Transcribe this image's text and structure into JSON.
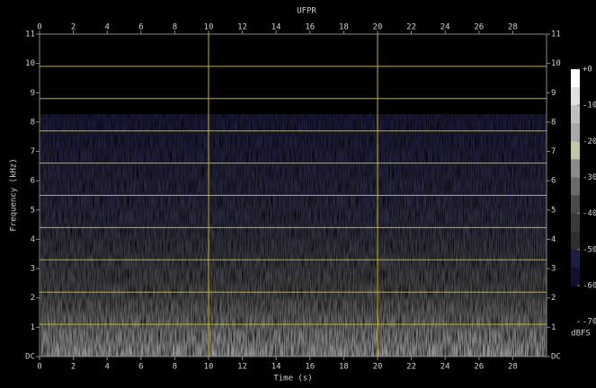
{
  "chart_data": {
    "type": "spectrogram",
    "title": "UFPR",
    "x_label": "Time (s)",
    "y_label": "Frequency (kHz)",
    "xlim": [
      0,
      30
    ],
    "xticks": [
      0,
      2,
      4,
      6,
      8,
      10,
      12,
      14,
      16,
      18,
      20,
      22,
      24,
      26,
      28
    ],
    "ylim": [
      0,
      11
    ],
    "yticks": [
      {
        "value": 0,
        "label": "DC"
      },
      1,
      2,
      3,
      4,
      5,
      6,
      7,
      8,
      9,
      10,
      11
    ],
    "hlines": [
      1.1,
      2.2,
      3.3,
      4.4,
      5.5,
      6.6,
      7.7,
      8.8,
      9.9
    ],
    "vlines": [
      10,
      20
    ],
    "line_color": "#c8b400",
    "colorbar": {
      "label": "dBFS",
      "range": [
        -60,
        0
      ],
      "ticks": [
        {
          "value": 0,
          "label": "+0"
        },
        -10,
        -20,
        -30,
        -40,
        -50,
        -60,
        -70
      ],
      "colors": [
        "#ffffff",
        "#e0e0e0",
        "#c0c0c0",
        "#a8a8a8",
        "#bfc8a0",
        "#8a8a8a",
        "#6a6a6a",
        "#4a4a4a",
        "#3a3a3a",
        "#2e2e2e",
        "#1c1c44",
        "#101030"
      ]
    }
  }
}
